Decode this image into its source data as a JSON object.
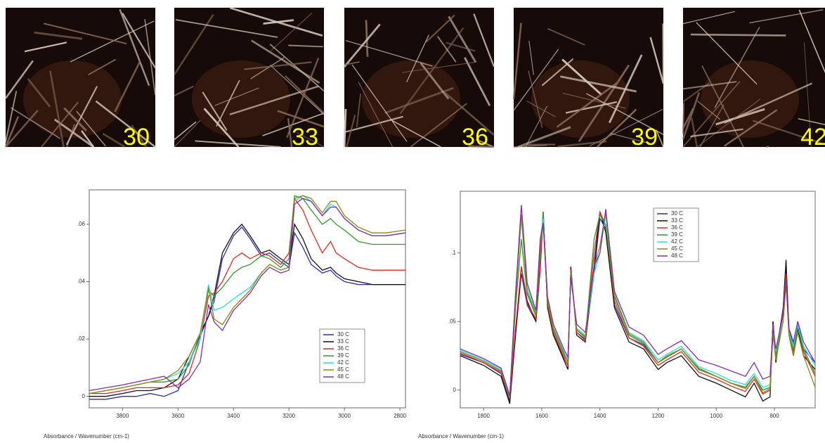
{
  "photos": {
    "labels": [
      "30",
      "33",
      "36",
      "39",
      "42"
    ]
  },
  "chart_data": [
    {
      "type": "line",
      "x_label": "Absorbance / Wavenumber (cm-1)",
      "legend": "lower right",
      "x": [
        3920,
        3860,
        3800,
        3750,
        3700,
        3650,
        3600,
        3560,
        3520,
        3490,
        3470,
        3440,
        3400,
        3370,
        3340,
        3300,
        3270,
        3230,
        3200,
        3180,
        3150,
        3120,
        3080,
        3050,
        3030,
        3000,
        2950,
        2900,
        2850,
        2780
      ],
      "xlim": [
        3920,
        2780
      ],
      "xticks": [
        3800,
        3600,
        3400,
        3200,
        3000,
        2800
      ],
      "ylim": [
        -0.004,
        0.072
      ],
      "yticks": [
        0,
        {
          "value": 0.02,
          "label": ".02"
        },
        {
          "value": 0.04,
          "label": ".04"
        },
        {
          "value": 0.06,
          "label": ".06"
        }
      ],
      "series": [
        {
          "name": "30 C",
          "color": "#2b2bb8",
          "values": [
            -0.001,
            -0.001,
            0,
            0,
            0.001,
            0,
            0.002,
            0.012,
            0.021,
            0.028,
            0.033,
            0.048,
            0.056,
            0.059,
            0.055,
            0.049,
            0.05,
            0.047,
            0.045,
            0.057,
            0.052,
            0.046,
            0.043,
            0.044,
            0.042,
            0.04,
            0.039,
            0.039,
            0.039,
            0.039
          ]
        },
        {
          "name": "33 C",
          "color": "#111111",
          "values": [
            0,
            0,
            0.001,
            0.002,
            0.002,
            0.003,
            0.006,
            0.014,
            0.022,
            0.028,
            0.035,
            0.05,
            0.057,
            0.06,
            0.056,
            0.05,
            0.051,
            0.048,
            0.046,
            0.06,
            0.055,
            0.048,
            0.044,
            0.045,
            0.043,
            0.041,
            0.04,
            0.039,
            0.039,
            0.039
          ]
        },
        {
          "name": "36 C",
          "color": "#e8251f",
          "values": [
            0.001,
            0.001,
            0.002,
            0.003,
            0.003,
            0.003,
            0.004,
            0.008,
            0.02,
            0.035,
            0.036,
            0.04,
            0.048,
            0.05,
            0.048,
            0.05,
            0.049,
            0.046,
            0.05,
            0.069,
            0.065,
            0.058,
            0.05,
            0.054,
            0.05,
            0.048,
            0.045,
            0.044,
            0.044,
            0.044
          ]
        },
        {
          "name": "39 C",
          "color": "#2e9a2e",
          "values": [
            0.001,
            0.002,
            0.003,
            0.004,
            0.005,
            0.005,
            0.006,
            0.011,
            0.022,
            0.037,
            0.035,
            0.038,
            0.043,
            0.045,
            0.046,
            0.049,
            0.048,
            0.045,
            0.048,
            0.07,
            0.069,
            0.065,
            0.06,
            0.062,
            0.06,
            0.058,
            0.054,
            0.053,
            0.053,
            0.053
          ]
        },
        {
          "name": "42 C",
          "color": "#22e0e8",
          "values": [
            0.001,
            0.002,
            0.003,
            0.004,
            0.005,
            0.006,
            0.008,
            0.012,
            0.02,
            0.039,
            0.03,
            0.031,
            0.034,
            0.036,
            0.038,
            0.043,
            0.046,
            0.044,
            0.045,
            0.068,
            0.07,
            0.068,
            0.063,
            0.067,
            0.066,
            0.062,
            0.058,
            0.056,
            0.056,
            0.057
          ]
        },
        {
          "name": "45 C",
          "color": "#8a8a10",
          "values": [
            0.001,
            0.002,
            0.003,
            0.004,
            0.005,
            0.006,
            0.009,
            0.014,
            0.022,
            0.038,
            0.027,
            0.025,
            0.031,
            0.034,
            0.037,
            0.043,
            0.046,
            0.044,
            0.045,
            0.069,
            0.07,
            0.069,
            0.064,
            0.068,
            0.068,
            0.063,
            0.059,
            0.057,
            0.057,
            0.058
          ]
        },
        {
          "name": "48 C",
          "color": "#8a2aa8",
          "values": [
            0.002,
            0.003,
            0.004,
            0.005,
            0.006,
            0.007,
            0.003,
            0.006,
            0.012,
            0.032,
            0.026,
            0.023,
            0.03,
            0.033,
            0.036,
            0.042,
            0.045,
            0.043,
            0.044,
            0.067,
            0.069,
            0.068,
            0.063,
            0.066,
            0.066,
            0.062,
            0.058,
            0.056,
            0.056,
            0.057
          ]
        }
      ]
    },
    {
      "type": "line",
      "x_label": "Absorbance / Wavenumber (cm-1)",
      "legend": "upper center",
      "x": [
        1880,
        1800,
        1740,
        1710,
        1690,
        1670,
        1650,
        1620,
        1605,
        1595,
        1580,
        1560,
        1520,
        1510,
        1500,
        1480,
        1450,
        1420,
        1400,
        1380,
        1350,
        1300,
        1250,
        1200,
        1170,
        1120,
        1060,
        1000,
        950,
        900,
        870,
        840,
        815,
        805,
        795,
        770,
        760,
        750,
        735,
        720,
        700,
        660
      ],
      "xlim": [
        1880,
        660
      ],
      "xticks": [
        1800,
        1600,
        1400,
        1200,
        1000,
        800
      ],
      "ylim": [
        -0.013,
        0.145
      ],
      "yticks": [
        0,
        {
          "value": 0.05,
          "label": ".05"
        },
        {
          "value": 0.1,
          "label": ".1"
        }
      ],
      "series": [
        {
          "name": "30 C",
          "color": "#2b2bb8",
          "values": [
            0.026,
            0.02,
            0.012,
            -0.008,
            0.04,
            0.085,
            0.062,
            0.05,
            0.088,
            0.128,
            0.06,
            0.04,
            0.022,
            0.018,
            0.088,
            0.042,
            0.037,
            0.085,
            0.125,
            0.118,
            0.062,
            0.038,
            0.033,
            0.02,
            0.024,
            0.03,
            0.015,
            0.01,
            0.005,
            0.002,
            0.01,
            0,
            0.002,
            0.05,
            0.025,
            0.06,
            0.09,
            0.045,
            0.032,
            0.05,
            0.03,
            0.02
          ]
        },
        {
          "name": "33 C",
          "color": "#111111",
          "values": [
            0.025,
            0.018,
            0.01,
            -0.01,
            0.04,
            0.09,
            0.065,
            0.05,
            0.09,
            0.13,
            0.06,
            0.04,
            0.02,
            0.015,
            0.09,
            0.04,
            0.035,
            0.09,
            0.13,
            0.115,
            0.06,
            0.035,
            0.03,
            0.015,
            0.02,
            0.025,
            0.01,
            0.005,
            0,
            -0.005,
            0.005,
            -0.008,
            -0.005,
            0.05,
            0.02,
            0.06,
            0.095,
            0.04,
            0.025,
            0.045,
            0.025,
            0.015
          ]
        },
        {
          "name": "36 C",
          "color": "#e8251f",
          "values": [
            0.027,
            0.02,
            0.013,
            -0.006,
            0.045,
            0.09,
            0.063,
            0.052,
            0.09,
            0.13,
            0.062,
            0.042,
            0.022,
            0.018,
            0.088,
            0.042,
            0.036,
            0.1,
            0.13,
            0.12,
            0.065,
            0.038,
            0.032,
            0.018,
            0.022,
            0.028,
            0.013,
            0.008,
            0.003,
            -0.001,
            0.008,
            -0.003,
            0,
            0.048,
            0.022,
            0.058,
            0.085,
            0.042,
            0.028,
            0.048,
            0.028,
            0.01
          ]
        },
        {
          "name": "39 C",
          "color": "#2e9a2e",
          "values": [
            0.028,
            0.021,
            0.014,
            -0.005,
            0.06,
            0.11,
            0.07,
            0.054,
            0.1,
            0.13,
            0.064,
            0.044,
            0.024,
            0.02,
            0.086,
            0.044,
            0.038,
            0.11,
            0.128,
            0.12,
            0.068,
            0.04,
            0.034,
            0.02,
            0.024,
            0.03,
            0.015,
            0.01,
            0.005,
            0.002,
            0.01,
            0,
            0.002,
            0.045,
            0.025,
            0.055,
            0.08,
            0.04,
            0.03,
            0.046,
            0.03,
            0.012
          ]
        },
        {
          "name": "42 C",
          "color": "#22e0e8",
          "values": [
            0.029,
            0.022,
            0.015,
            -0.004,
            0.07,
            0.125,
            0.075,
            0.056,
            0.11,
            0.125,
            0.066,
            0.046,
            0.026,
            0.022,
            0.085,
            0.045,
            0.04,
            0.085,
            0.1,
            0.128,
            0.07,
            0.042,
            0.036,
            0.022,
            0.026,
            0.032,
            0.017,
            0.012,
            0.007,
            0.004,
            0.012,
            0.002,
            0.004,
            0.045,
            0.028,
            0.055,
            0.08,
            0.042,
            0.032,
            0.048,
            0.032,
            0.018
          ]
        },
        {
          "name": "45 C",
          "color": "#8a8a10",
          "values": [
            0.028,
            0.021,
            0.014,
            -0.006,
            0.065,
            0.128,
            0.072,
            0.055,
            0.105,
            0.12,
            0.065,
            0.045,
            0.025,
            0.02,
            0.084,
            0.044,
            0.039,
            0.09,
            0.105,
            0.13,
            0.069,
            0.041,
            0.035,
            0.02,
            0.025,
            0.03,
            0.016,
            0.01,
            0.005,
            0.001,
            0.01,
            -0.002,
            0.001,
            0.04,
            0.022,
            0.05,
            0.078,
            0.04,
            0.025,
            0.042,
            0.025,
            0.002
          ]
        },
        {
          "name": "48 C",
          "color": "#8a2aa8",
          "values": [
            0.03,
            0.023,
            0.016,
            -0.004,
            0.07,
            0.135,
            0.078,
            0.058,
            0.11,
            0.122,
            0.068,
            0.048,
            0.028,
            0.024,
            0.082,
            0.048,
            0.042,
            0.09,
            0.1,
            0.132,
            0.072,
            0.046,
            0.04,
            0.026,
            0.03,
            0.036,
            0.022,
            0.018,
            0.014,
            0.01,
            0.02,
            0.008,
            0.01,
            0.045,
            0.03,
            0.055,
            0.08,
            0.045,
            0.035,
            0.05,
            0.035,
            0.02
          ]
        }
      ]
    }
  ]
}
